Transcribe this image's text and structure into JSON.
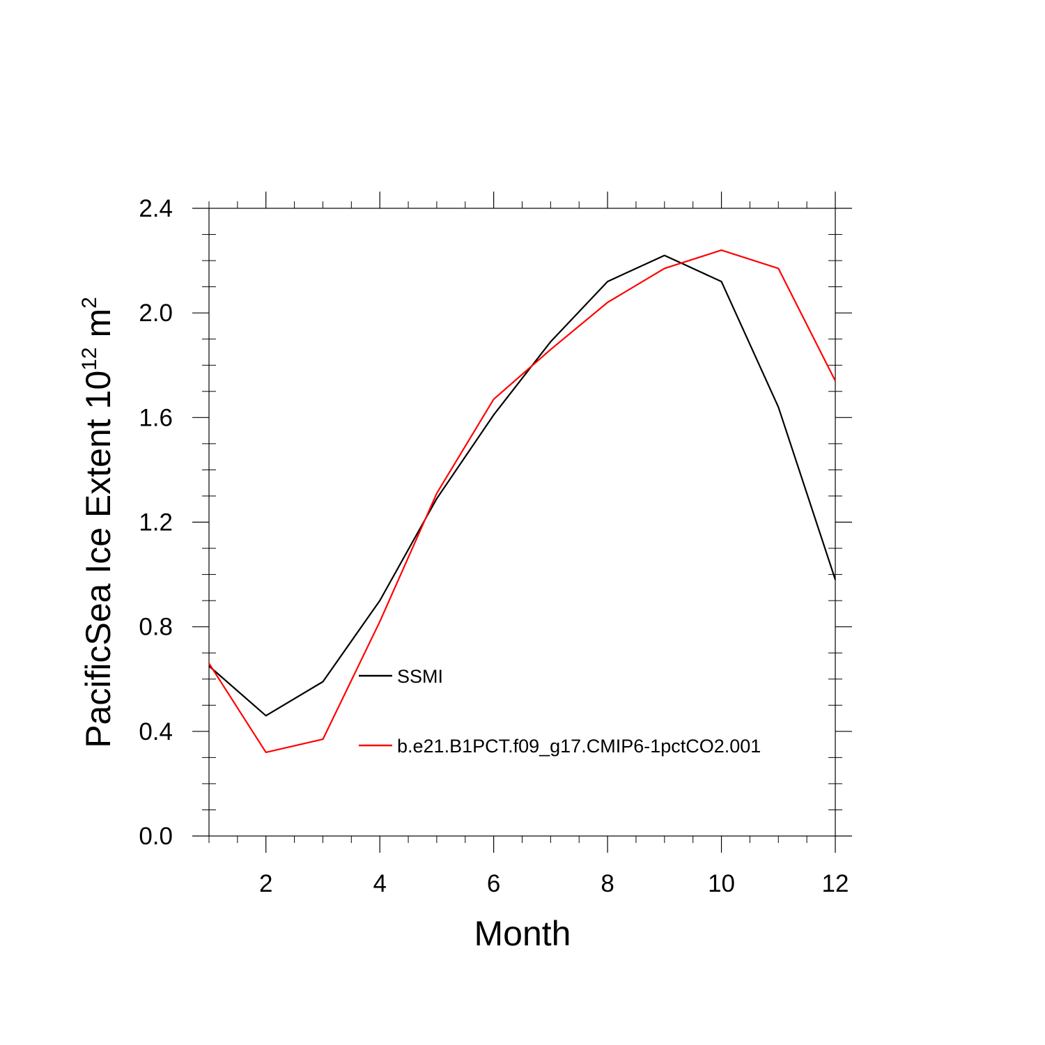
{
  "chart_data": {
    "type": "line",
    "title": "",
    "xlabel": "Month",
    "ylabel": {
      "main": "PacificSea Ice Extent 10",
      "exponent": "12",
      "unit": "m",
      "unit_exponent": "2"
    },
    "x": [
      1,
      2,
      3,
      4,
      5,
      6,
      7,
      8,
      9,
      10,
      11,
      12
    ],
    "xlim": [
      1,
      12
    ],
    "ylim": [
      0.0,
      2.4
    ],
    "xticks": [
      2,
      4,
      6,
      8,
      10,
      12
    ],
    "xtick_labels": [
      "2",
      "4",
      "6",
      "8",
      "10",
      "12"
    ],
    "yticks": [
      0.0,
      0.4,
      0.8,
      1.2,
      1.6,
      2.0,
      2.4
    ],
    "ytick_labels": [
      "0.0",
      "0.4",
      "0.8",
      "1.2",
      "1.6",
      "2.0",
      "2.4"
    ],
    "grid": false,
    "legend_position": "inside-lower-center",
    "series": [
      {
        "name": "SSMI",
        "color": "#000000",
        "values": [
          0.65,
          0.46,
          0.59,
          0.9,
          1.29,
          1.61,
          1.89,
          2.12,
          2.22,
          2.12,
          1.64,
          0.98
        ]
      },
      {
        "name": "b.e21.B1PCT.f09_g17.CMIP6-1pctCO2.001",
        "color": "#ff0000",
        "values": [
          0.66,
          0.32,
          0.37,
          0.82,
          1.31,
          1.67,
          1.86,
          2.04,
          2.17,
          2.24,
          2.17,
          1.74
        ]
      }
    ]
  }
}
